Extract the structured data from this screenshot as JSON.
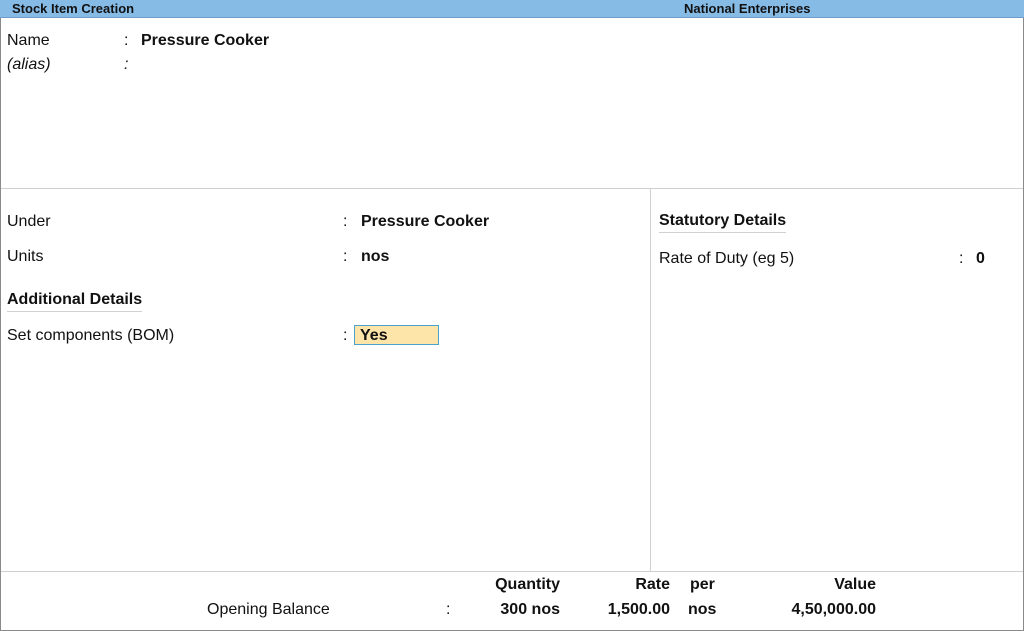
{
  "titlebar": {
    "screen_title": "Stock Item Creation",
    "company": "National Enterprises"
  },
  "colors": {
    "titlebar_bg": "#86bbe6",
    "active_field_bg": "#fde4a8",
    "active_field_border": "#4aa3c8"
  },
  "header": {
    "name_label": "Name",
    "name_value": "Pressure Cooker",
    "alias_label": "(alias)",
    "alias_value": ""
  },
  "left": {
    "under_label": "Under",
    "under_value": "Pressure Cooker",
    "units_label": "Units",
    "units_value": "nos",
    "additional_heading": "Additional Details",
    "bom_label": "Set components (BOM)",
    "bom_value": "Yes"
  },
  "right": {
    "statutory_heading": "Statutory Details",
    "duty_label": "Rate of Duty (eg 5)",
    "duty_value": "0"
  },
  "opening": {
    "label": "Opening Balance",
    "headers": {
      "quantity": "Quantity",
      "rate": "Rate",
      "per": "per",
      "value": "Value"
    },
    "quantity": "300 nos",
    "rate": "1,500.00",
    "per": "nos",
    "value": "4,50,000.00"
  },
  "sep": ":"
}
